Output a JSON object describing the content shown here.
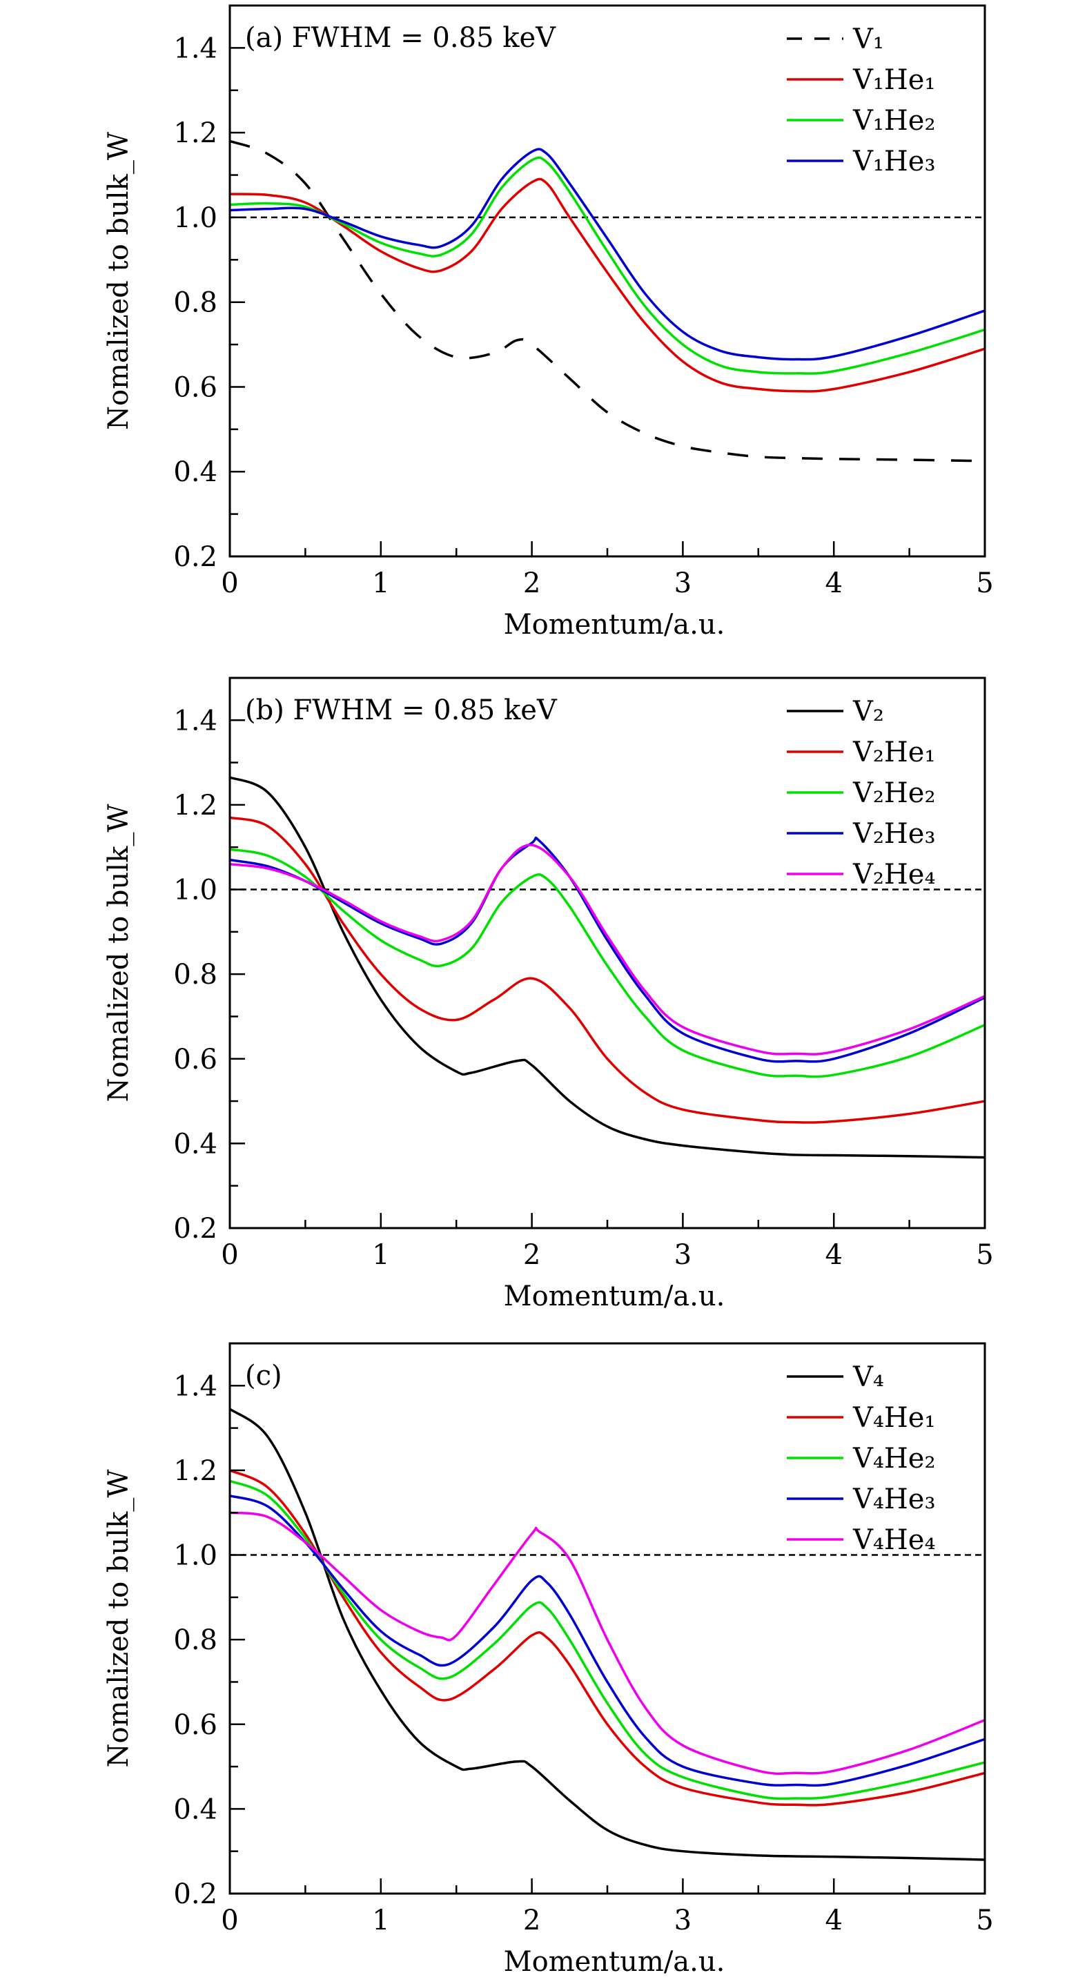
{
  "chart_data": [
    {
      "type": "line",
      "panel": "(a)",
      "annotation": "(a)   FWHM = 0.85 keV",
      "xlabel": "Momentum/a.u.",
      "ylabel": "Nomalized to bulk_W",
      "xlim": [
        0,
        5
      ],
      "ylim": [
        0.2,
        1.5
      ],
      "xticks": [
        "0",
        "1",
        "2",
        "3",
        "4",
        "5"
      ],
      "yticks": [
        "0.2",
        "0.4",
        "0.6",
        "0.8",
        "1.0",
        "1.2",
        "1.4"
      ],
      "legend_position": "top-right",
      "reference_line": 1.0,
      "series": [
        {
          "name": "V₁",
          "color": "#000000",
          "dash": true,
          "x": [
            0,
            0.25,
            0.5,
            0.75,
            1,
            1.25,
            1.5,
            1.75,
            1.9,
            2,
            2.25,
            2.5,
            2.75,
            3,
            3.25,
            3.5,
            3.75,
            4,
            4.5,
            5
          ],
          "y": [
            1.18,
            1.15,
            1.08,
            0.95,
            0.82,
            0.72,
            0.67,
            0.68,
            0.71,
            0.7,
            0.62,
            0.54,
            0.49,
            0.46,
            0.445,
            0.435,
            0.432,
            0.43,
            0.428,
            0.425
          ]
        },
        {
          "name": "V₁He₁",
          "color": "#e00000",
          "x": [
            0,
            0.25,
            0.5,
            0.75,
            1,
            1.25,
            1.4,
            1.6,
            1.8,
            2,
            2.1,
            2.25,
            2.5,
            2.75,
            3,
            3.25,
            3.5,
            3.75,
            4,
            4.5,
            5
          ],
          "y": [
            1.055,
            1.053,
            1.035,
            0.98,
            0.92,
            0.88,
            0.875,
            0.92,
            1.02,
            1.083,
            1.08,
            1.0,
            0.87,
            0.75,
            0.66,
            0.61,
            0.595,
            0.59,
            0.595,
            0.635,
            0.69
          ]
        },
        {
          "name": "V₁He₂",
          "color": "#00e000",
          "x": [
            0,
            0.25,
            0.5,
            0.75,
            1,
            1.25,
            1.4,
            1.6,
            1.8,
            2,
            2.1,
            2.25,
            2.5,
            2.75,
            3,
            3.25,
            3.5,
            3.75,
            4,
            4.5,
            5
          ],
          "y": [
            1.03,
            1.033,
            1.025,
            0.985,
            0.94,
            0.915,
            0.912,
            0.96,
            1.07,
            1.135,
            1.13,
            1.06,
            0.92,
            0.79,
            0.7,
            0.65,
            0.635,
            0.632,
            0.637,
            0.68,
            0.735
          ]
        },
        {
          "name": "V₁He₃",
          "color": "#0000d0",
          "x": [
            0,
            0.25,
            0.5,
            0.75,
            1,
            1.25,
            1.4,
            1.6,
            1.8,
            2,
            2.1,
            2.25,
            2.5,
            2.75,
            3,
            3.25,
            3.5,
            3.75,
            4,
            4.5,
            5
          ],
          "y": [
            1.017,
            1.02,
            1.02,
            0.99,
            0.955,
            0.935,
            0.932,
            0.98,
            1.09,
            1.155,
            1.15,
            1.08,
            0.95,
            0.82,
            0.73,
            0.685,
            0.67,
            0.665,
            0.672,
            0.72,
            0.78
          ]
        }
      ]
    },
    {
      "type": "line",
      "panel": "(b)",
      "annotation": "(b)   FWHM = 0.85 keV",
      "xlabel": "Momentum/a.u.",
      "ylabel": "Nomalized to bulk_W",
      "xlim": [
        0,
        5
      ],
      "ylim": [
        0.2,
        1.5
      ],
      "xticks": [
        "0",
        "1",
        "2",
        "3",
        "4",
        "5"
      ],
      "yticks": [
        "0.2",
        "0.4",
        "0.6",
        "0.8",
        "1.0",
        "1.2",
        "1.4"
      ],
      "legend_position": "top-right",
      "reference_line": 1.0,
      "series": [
        {
          "name": "V₂",
          "color": "#000000",
          "x": [
            0,
            0.25,
            0.5,
            0.75,
            1,
            1.25,
            1.5,
            1.6,
            1.9,
            2,
            2.25,
            2.5,
            2.75,
            3,
            3.5,
            3.75,
            4,
            4.5,
            5
          ],
          "y": [
            1.265,
            1.23,
            1.1,
            0.9,
            0.74,
            0.63,
            0.57,
            0.567,
            0.595,
            0.585,
            0.5,
            0.44,
            0.41,
            0.395,
            0.378,
            0.373,
            0.372,
            0.37,
            0.367
          ]
        },
        {
          "name": "V₂He₁",
          "color": "#e00000",
          "x": [
            0,
            0.25,
            0.5,
            0.75,
            1,
            1.25,
            1.5,
            1.75,
            2,
            2.25,
            2.5,
            2.75,
            3,
            3.5,
            3.75,
            4,
            4.5,
            5
          ],
          "y": [
            1.17,
            1.15,
            1.06,
            0.92,
            0.8,
            0.72,
            0.692,
            0.74,
            0.79,
            0.72,
            0.6,
            0.52,
            0.48,
            0.455,
            0.45,
            0.452,
            0.47,
            0.5
          ]
        },
        {
          "name": "V₂He₂",
          "color": "#00e000",
          "x": [
            0,
            0.25,
            0.5,
            0.75,
            1,
            1.25,
            1.4,
            1.6,
            1.8,
            2,
            2.1,
            2.25,
            2.5,
            2.75,
            3,
            3.5,
            3.75,
            4,
            4.5,
            5
          ],
          "y": [
            1.095,
            1.08,
            1.03,
            0.95,
            0.88,
            0.835,
            0.82,
            0.86,
            0.97,
            1.03,
            1.025,
            0.96,
            0.82,
            0.7,
            0.62,
            0.565,
            0.56,
            0.562,
            0.605,
            0.68
          ]
        },
        {
          "name": "V₂He₃",
          "color": "#0000d0",
          "x": [
            0,
            0.25,
            0.5,
            0.75,
            1,
            1.25,
            1.4,
            1.6,
            1.8,
            2,
            2.05,
            2.25,
            2.5,
            2.75,
            3,
            3.5,
            3.75,
            4,
            4.5,
            5
          ],
          "y": [
            1.07,
            1.055,
            1.02,
            0.97,
            0.92,
            0.885,
            0.872,
            0.92,
            1.05,
            1.11,
            1.115,
            1.03,
            0.88,
            0.75,
            0.66,
            0.6,
            0.595,
            0.6,
            0.66,
            0.745
          ]
        },
        {
          "name": "V₂He₄",
          "color": "#ee00ee",
          "x": [
            0,
            0.25,
            0.5,
            0.75,
            1,
            1.25,
            1.4,
            1.6,
            1.8,
            2,
            2.25,
            2.5,
            2.75,
            3,
            3.5,
            3.75,
            4,
            4.5,
            5
          ],
          "y": [
            1.06,
            1.05,
            1.02,
            0.975,
            0.925,
            0.89,
            0.88,
            0.925,
            1.05,
            1.105,
            1.03,
            0.89,
            0.76,
            0.675,
            0.618,
            0.612,
            0.617,
            0.67,
            0.748
          ]
        }
      ]
    },
    {
      "type": "line",
      "panel": "(c)",
      "annotation": "(c)",
      "xlabel": "Momentum/a.u.",
      "ylabel": "Nomalized to bulk_W",
      "xlim": [
        0,
        5
      ],
      "ylim": [
        0.2,
        1.5
      ],
      "xticks": [
        "0",
        "1",
        "2",
        "3",
        "4",
        "5"
      ],
      "yticks": [
        "0.2",
        "0.4",
        "0.6",
        "0.8",
        "1.0",
        "1.2",
        "1.4"
      ],
      "legend_position": "top-right",
      "reference_line": 1.0,
      "series": [
        {
          "name": "V₄",
          "color": "#000000",
          "x": [
            0,
            0.25,
            0.5,
            0.75,
            1,
            1.25,
            1.5,
            1.6,
            1.9,
            2,
            2.25,
            2.5,
            2.75,
            3,
            3.5,
            4,
            4.5,
            5
          ],
          "y": [
            1.345,
            1.28,
            1.1,
            0.85,
            0.68,
            0.56,
            0.5,
            0.495,
            0.512,
            0.5,
            0.42,
            0.35,
            0.315,
            0.3,
            0.29,
            0.287,
            0.284,
            0.28
          ]
        },
        {
          "name": "V₄He₁",
          "color": "#e00000",
          "x": [
            0,
            0.25,
            0.5,
            0.75,
            1,
            1.25,
            1.45,
            1.75,
            2,
            2.1,
            2.25,
            2.5,
            2.75,
            3,
            3.5,
            3.75,
            4,
            4.5,
            5
          ],
          "y": [
            1.2,
            1.16,
            1.05,
            0.9,
            0.77,
            0.69,
            0.658,
            0.73,
            0.81,
            0.805,
            0.74,
            0.6,
            0.5,
            0.45,
            0.415,
            0.41,
            0.412,
            0.44,
            0.485
          ]
        },
        {
          "name": "V₄He₂",
          "color": "#00e000",
          "x": [
            0,
            0.25,
            0.5,
            0.75,
            1,
            1.25,
            1.45,
            1.75,
            2,
            2.1,
            2.25,
            2.5,
            2.75,
            3,
            3.5,
            3.75,
            4,
            4.5,
            5
          ],
          "y": [
            1.175,
            1.14,
            1.04,
            0.91,
            0.8,
            0.735,
            0.71,
            0.79,
            0.88,
            0.875,
            0.8,
            0.65,
            0.53,
            0.475,
            0.43,
            0.425,
            0.43,
            0.465,
            0.51
          ]
        },
        {
          "name": "V₄He₃",
          "color": "#0000d0",
          "x": [
            0,
            0.25,
            0.5,
            0.75,
            1,
            1.25,
            1.45,
            1.75,
            2,
            2.1,
            2.25,
            2.5,
            2.75,
            3,
            3.5,
            3.75,
            4,
            4.5,
            5
          ],
          "y": [
            1.14,
            1.115,
            1.03,
            0.92,
            0.82,
            0.765,
            0.742,
            0.83,
            0.94,
            0.935,
            0.86,
            0.7,
            0.57,
            0.5,
            0.46,
            0.457,
            0.46,
            0.505,
            0.565
          ]
        },
        {
          "name": "V₄He₄",
          "color": "#ee00ee",
          "x": [
            0,
            0.25,
            0.5,
            0.75,
            1,
            1.25,
            1.4,
            1.5,
            1.75,
            2,
            2.05,
            2.25,
            2.5,
            2.75,
            3,
            3.5,
            3.75,
            4,
            4.5,
            5
          ],
          "y": [
            1.1,
            1.09,
            1.03,
            0.95,
            0.87,
            0.82,
            0.805,
            0.81,
            0.93,
            1.05,
            1.055,
            0.99,
            0.8,
            0.64,
            0.55,
            0.49,
            0.485,
            0.49,
            0.54,
            0.61
          ]
        }
      ]
    }
  ]
}
